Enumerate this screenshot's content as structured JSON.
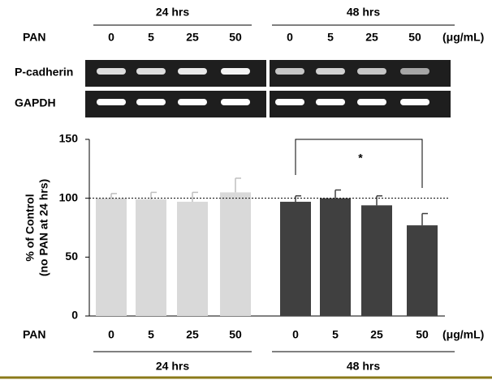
{
  "blot": {
    "rows": [
      "P-cadherin",
      "GAPDH"
    ]
  },
  "chart_data": {
    "type": "bar",
    "x_label": "PAN",
    "unit": "(μg/mL)",
    "y_label": [
      "% of Control",
      "(no PAN at 24 hrs)"
    ],
    "categories": [
      "0",
      "5",
      "25",
      "50"
    ],
    "series": [
      {
        "name": "24 hrs",
        "color": "#d9d9d9",
        "values": [
          100,
          99,
          97,
          105
        ],
        "errors": [
          4,
          6,
          8,
          12
        ]
      },
      {
        "name": "48 hrs",
        "color": "#404040",
        "values": [
          97,
          100,
          94,
          77
        ],
        "errors": [
          5,
          7,
          8,
          10
        ]
      }
    ],
    "ylim": [
      0,
      150
    ],
    "yticks": [
      0,
      50,
      100,
      150
    ],
    "reference_line": 100,
    "annotation": "*"
  }
}
